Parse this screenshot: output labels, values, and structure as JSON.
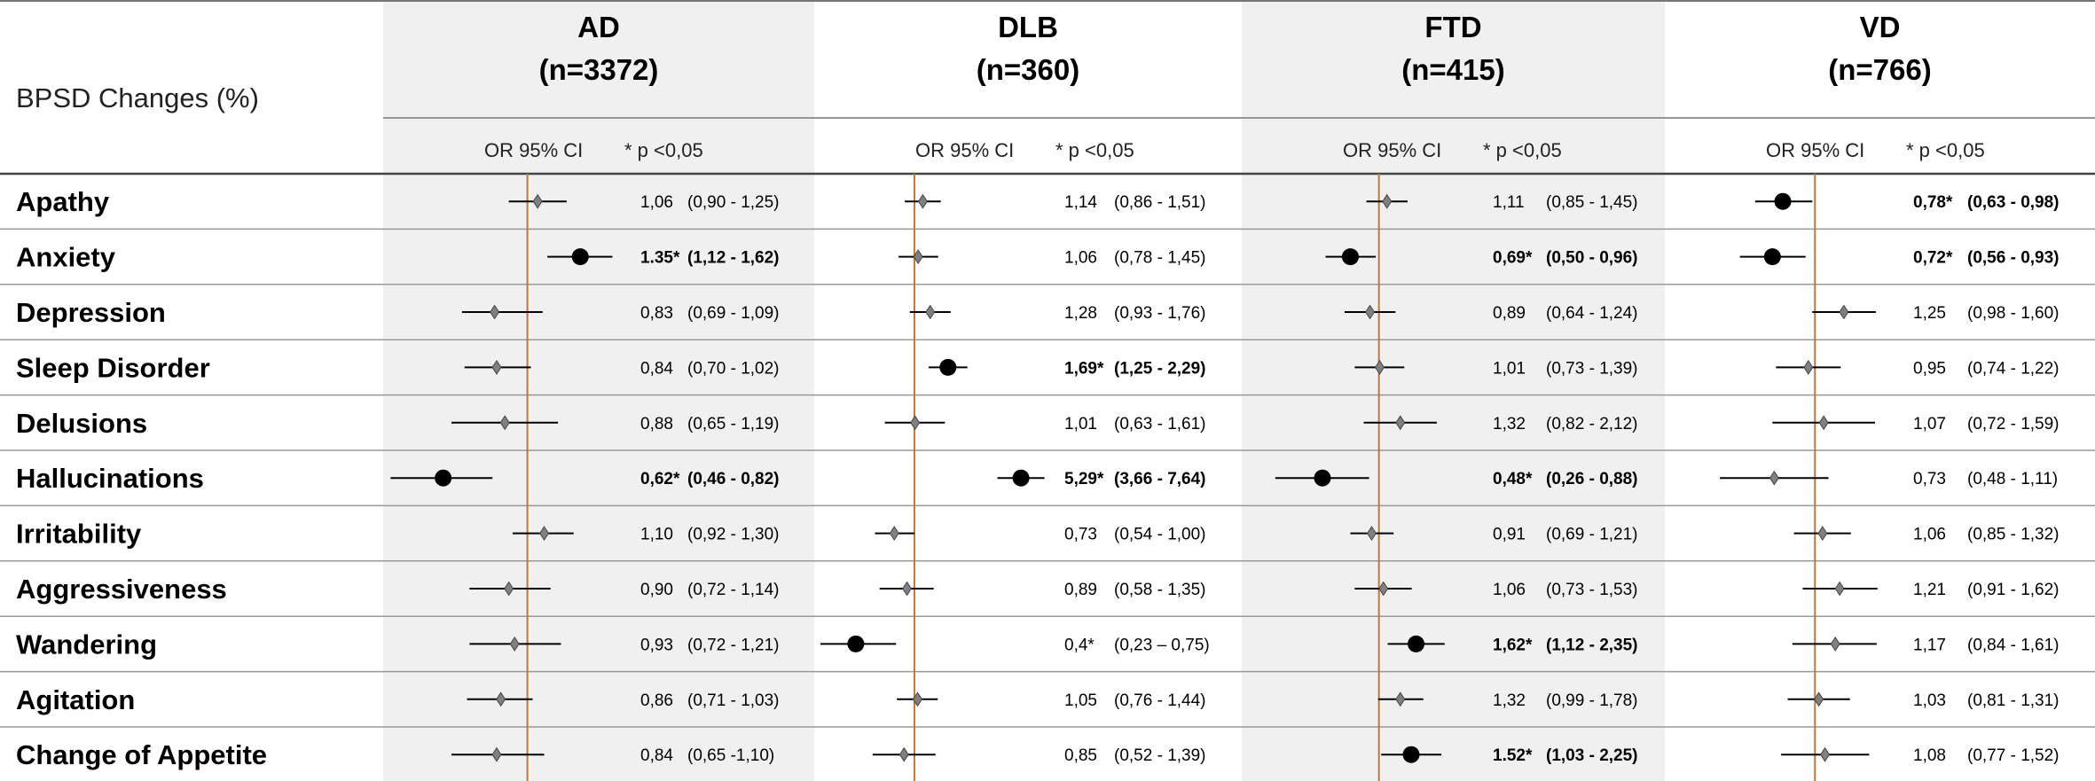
{
  "chart_data": {
    "type": "forest",
    "title": "BPSD Changes (%)",
    "column_sub_label": "OR 95% CI",
    "significance_label": "* p <0,05",
    "reference_value": 1,
    "colors": {
      "reference_line": "#c07838",
      "significant_marker": "#000000",
      "non_significant_marker": "#808080",
      "panel_shade": "#f0f0f0"
    },
    "rows": [
      "Apathy",
      "Anxiety",
      "Depression",
      "Sleep Disorder",
      "Delusions",
      "Hallucinations",
      "Irritability",
      "Aggressiveness",
      "Wandering",
      "Agitation",
      "Change of Appetite"
    ],
    "groups": [
      {
        "name": "AD",
        "n_label": "(n=3372)",
        "xlim": [
          0.45,
          1.7
        ],
        "or_text": [
          "1,06",
          "1.35*",
          "0,83",
          "0,84",
          "0,88",
          "0,62*",
          "1,10",
          "0,90",
          "0,93",
          "0,86",
          "0,84"
        ],
        "ci_text": [
          "(0,90 - 1,25)",
          "(1,12 - 1,62)",
          "(0,69 - 1,09)",
          "(0,70 - 1,02)",
          "(0,65 - 1,19)",
          "(0,46 - 0,82)",
          "(0,92 - 1,30)",
          "(0,72 - 1,14)",
          "(0,72 - 1,21)",
          "(0,71 - 1,03)",
          "(0,65 -1,10)"
        ],
        "or": [
          1.06,
          1.35,
          0.83,
          0.84,
          0.88,
          0.62,
          1.1,
          0.9,
          0.93,
          0.86,
          0.84
        ],
        "ci_low": [
          0.9,
          1.12,
          0.69,
          0.7,
          0.65,
          0.46,
          0.92,
          0.72,
          0.72,
          0.71,
          0.65
        ],
        "ci_high": [
          1.25,
          1.62,
          1.09,
          1.02,
          1.19,
          0.82,
          1.3,
          1.14,
          1.21,
          1.03,
          1.1
        ],
        "significant": [
          false,
          true,
          false,
          false,
          false,
          true,
          false,
          false,
          false,
          false,
          false
        ]
      },
      {
        "name": "DLB",
        "n_label": "(n=360)",
        "xlim": [
          0.23,
          7.9
        ],
        "or_text": [
          "1,14",
          "1,06",
          "1,28",
          "1,69*",
          "1,01",
          "5,29*",
          "0,73",
          "0,89",
          "0,4*",
          "1,05",
          "0,85"
        ],
        "ci_text": [
          "(0,86 - 1,51)",
          "(0,78 - 1,45)",
          "(0,93 - 1,76)",
          "(1,25 - 2,29)",
          "(0,63 - 1,61)",
          "(3,66 - 7,64)",
          "(0,54 - 1,00)",
          "(0,58 - 1,35)",
          "(0,23 – 0,75)",
          "(0,76 - 1,44)",
          "(0,52 - 1,39)"
        ],
        "or": [
          1.14,
          1.06,
          1.28,
          1.69,
          1.01,
          5.29,
          0.73,
          0.89,
          0.4,
          1.05,
          0.85
        ],
        "ci_low": [
          0.86,
          0.78,
          0.93,
          1.25,
          0.63,
          3.66,
          0.54,
          0.58,
          0.23,
          0.76,
          0.52
        ],
        "ci_high": [
          1.51,
          1.45,
          1.76,
          2.29,
          1.61,
          7.64,
          1.0,
          1.35,
          0.75,
          1.44,
          1.39
        ],
        "significant": [
          false,
          false,
          false,
          true,
          false,
          true,
          false,
          false,
          true,
          false,
          false
        ],
        "bold_value": [
          false,
          false,
          false,
          true,
          false,
          true,
          false,
          false,
          false,
          false,
          false
        ]
      },
      {
        "name": "FTD",
        "n_label": "(n=415)",
        "xlim": [
          0.2,
          3.0
        ],
        "or_text": [
          "1,11",
          "0,69*",
          "0,89",
          "1,01",
          "1,32",
          "0,48*",
          "0,91",
          "1,06",
          "1,62*",
          "1,32",
          "1.52*"
        ],
        "ci_text": [
          "(0,85 - 1,45)",
          "(0,50 - 0,96)",
          "(0,64 - 1,24)",
          "(0,73 - 1,39)",
          "(0,82 - 2,12)",
          "(0,26 - 0,88)",
          "(0,69 - 1,21)",
          "(0,73 - 1,53)",
          "(1,12 - 2,35)",
          "(0,99 - 1,78)",
          "(1,03 - 2,25)"
        ],
        "or": [
          1.11,
          0.69,
          0.89,
          1.01,
          1.32,
          0.48,
          0.91,
          1.06,
          1.62,
          1.32,
          1.52
        ],
        "ci_low": [
          0.85,
          0.5,
          0.64,
          0.73,
          0.82,
          0.26,
          0.69,
          0.73,
          1.12,
          0.99,
          1.03
        ],
        "ci_high": [
          1.45,
          0.96,
          1.24,
          1.39,
          2.12,
          0.88,
          1.21,
          1.53,
          2.35,
          1.78,
          2.25
        ],
        "significant": [
          false,
          true,
          false,
          false,
          false,
          true,
          false,
          false,
          true,
          false,
          true
        ]
      },
      {
        "name": "VD",
        "n_label": "(n=766)",
        "xlim": [
          0.35,
          1.9
        ],
        "or_text": [
          "0,78*",
          "0,72*",
          "1,25",
          "0,95",
          "1,07",
          "0,73",
          "1,06",
          "1,21",
          "1,17",
          "1,03",
          "1,08"
        ],
        "ci_text": [
          "(0,63 - 0,98)",
          "(0,56 - 0,93)",
          "(0,98 - 1,60)",
          "(0,74 - 1,22)",
          "(0,72 - 1,59)",
          "(0,48 - 1,11)",
          "(0,85 - 1,32)",
          "(0,91 - 1,62)",
          "(0,84 - 1,61)",
          "(0,81 - 1,31)",
          "(0,77 - 1,52)"
        ],
        "or": [
          0.78,
          0.72,
          1.25,
          0.95,
          1.07,
          0.73,
          1.06,
          1.21,
          1.17,
          1.03,
          1.08
        ],
        "ci_low": [
          0.63,
          0.56,
          0.98,
          0.74,
          0.72,
          0.48,
          0.85,
          0.91,
          0.84,
          0.81,
          0.77
        ],
        "ci_high": [
          0.98,
          0.93,
          1.6,
          1.22,
          1.59,
          1.11,
          1.32,
          1.62,
          1.61,
          1.31,
          1.52
        ],
        "significant": [
          true,
          true,
          false,
          false,
          false,
          false,
          false,
          false,
          false,
          false,
          false
        ]
      }
    ]
  }
}
